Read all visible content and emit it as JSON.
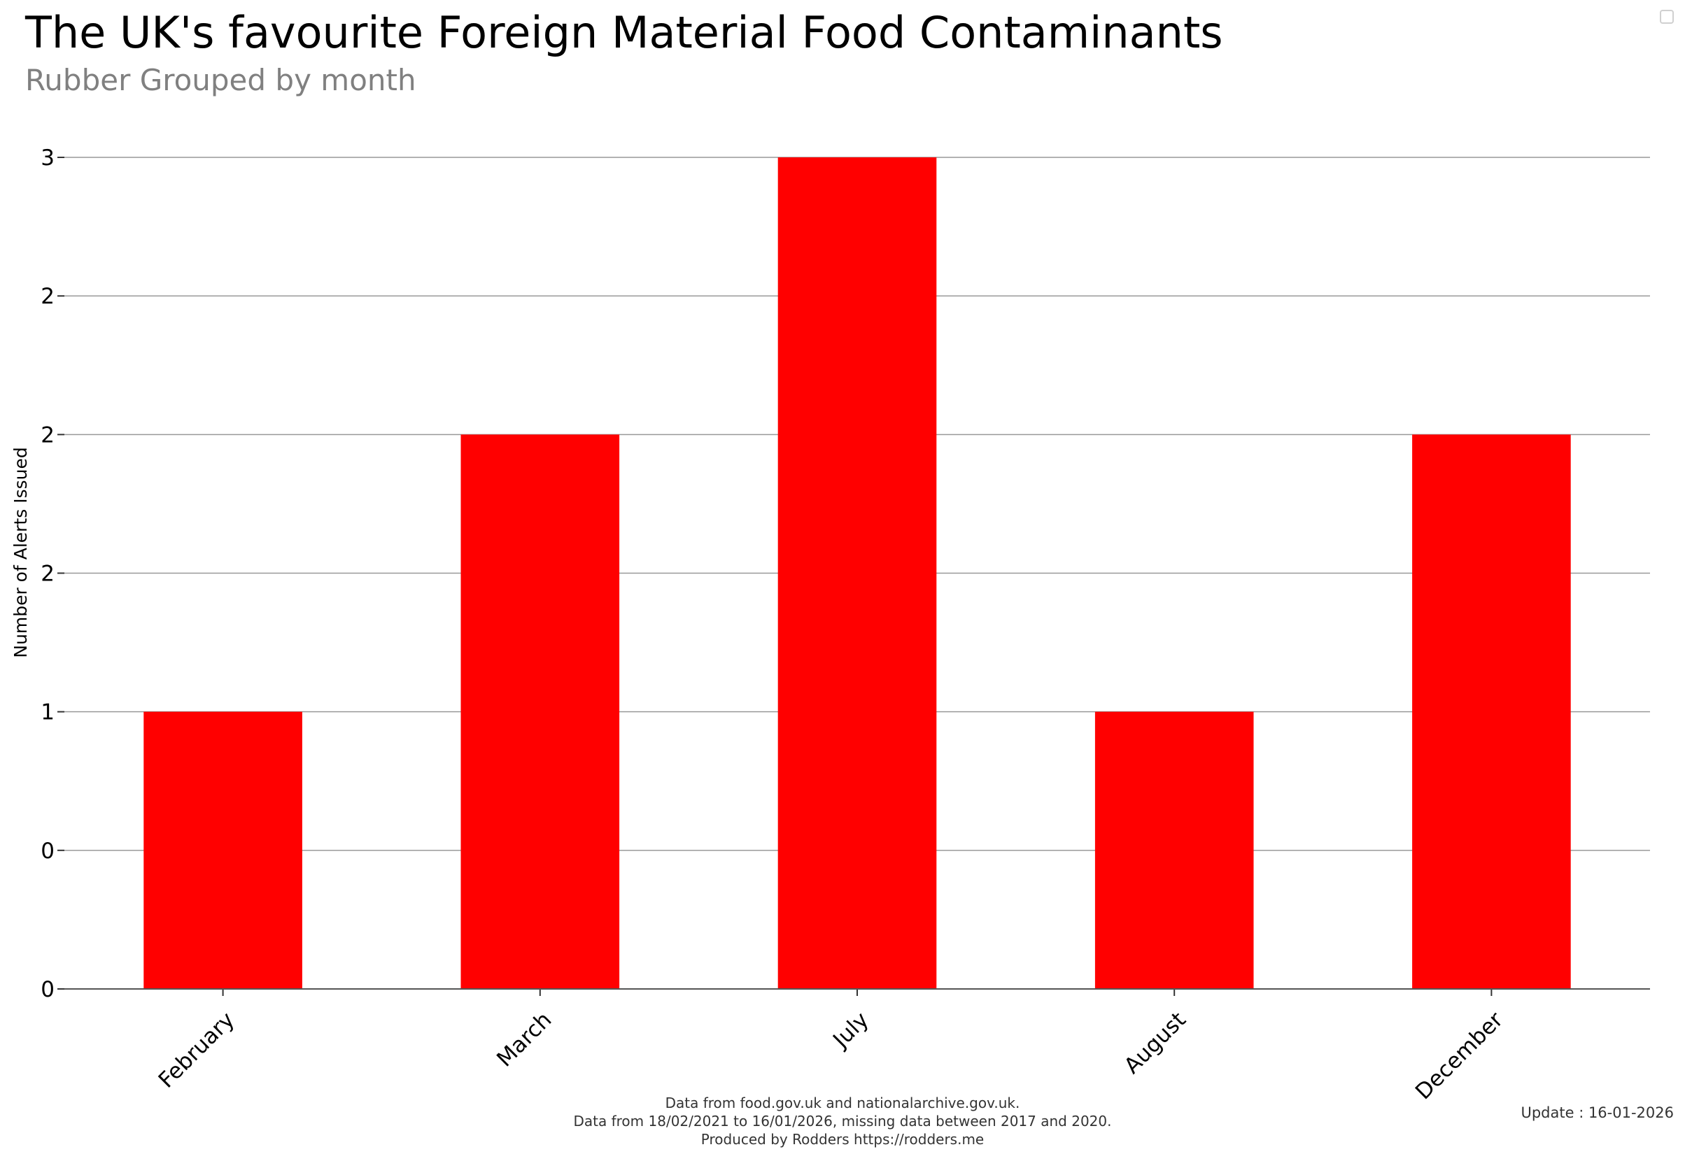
{
  "chart_data": {
    "type": "bar",
    "title": "The UK's favourite Foreign Material Food Contaminants",
    "subtitle": "Rubber Grouped by month",
    "ylabel": "Number of Alerts Issued",
    "xlabel": "",
    "categories": [
      "February",
      "March",
      "July",
      "August",
      "December"
    ],
    "values": [
      1,
      2,
      3,
      1,
      2
    ],
    "ylim": [
      0,
      3
    ],
    "y_ticks": [
      0,
      0.5,
      1,
      1.5,
      2,
      2.5,
      3
    ],
    "y_tick_labels": [
      "0",
      "0",
      "1",
      "2",
      "2",
      "2",
      "3"
    ],
    "bar_color": "#ff0000",
    "grid": true
  },
  "footer": {
    "line1": "Data from food.gov.uk and nationalarchive.gov.uk.",
    "line2": "Data from 18/02/2021 to 16/01/2026, missing data between 2017 and 2020.",
    "line3": "Produced by Rodders https://rodders.me"
  },
  "update_label": "Update : 16-01-2026"
}
